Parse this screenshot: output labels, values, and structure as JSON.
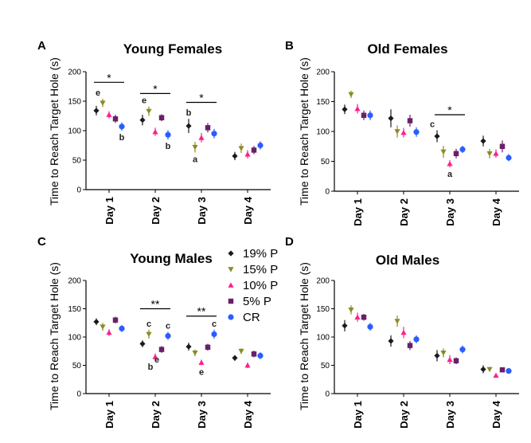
{
  "figure": {
    "legend": [
      {
        "label": "19% P",
        "color": "#1a1a1a",
        "marker": "diamond"
      },
      {
        "label": "15% P",
        "color": "#8b8b23",
        "marker": "triangle-down"
      },
      {
        "label": "10% P",
        "color": "#ff1f8f",
        "marker": "triangle-up"
      },
      {
        "label": "5% P",
        "color": "#6a1f6a",
        "marker": "square"
      },
      {
        "label": "CR",
        "color": "#2b5cff",
        "marker": "circle"
      }
    ]
  },
  "chart_data": [
    {
      "type": "scatter",
      "letter": "A",
      "title": "Young Females",
      "ylabel": "Time to Reach Target Hole (s)",
      "categories": [
        "Day 1",
        "Day 2",
        "Day 3",
        "Day 4"
      ],
      "ylim": [
        0,
        200
      ],
      "yticks": [
        0,
        50,
        100,
        150,
        200
      ],
      "series": [
        {
          "name": "19% P",
          "values": [
            134,
            118,
            108,
            57
          ],
          "errors": [
            8,
            9,
            12,
            7
          ]
        },
        {
          "name": "15% P",
          "values": [
            147,
            133,
            72,
            70
          ],
          "errors": [
            7,
            8,
            9,
            8
          ]
        },
        {
          "name": "10% P",
          "values": [
            127,
            98,
            88,
            60
          ],
          "errors": [
            6,
            7,
            8,
            7
          ]
        },
        {
          "name": "5% P",
          "values": [
            120,
            122,
            105,
            67
          ],
          "errors": [
            7,
            6,
            8,
            7
          ]
        },
        {
          "name": "CR",
          "values": [
            107,
            93,
            95,
            75
          ],
          "errors": [
            7,
            8,
            8,
            7
          ]
        }
      ],
      "brackets": [
        {
          "from": 0,
          "to": 4,
          "day": 0,
          "y": 182,
          "label": "*"
        },
        {
          "from": 0,
          "to": 4,
          "day": 1,
          "y": 163,
          "label": "*"
        },
        {
          "from": 0,
          "to": 4,
          "day": 2,
          "y": 148,
          "label": "*"
        }
      ],
      "letters": [
        {
          "day": 0,
          "series": 1,
          "text": "e",
          "pos": "above-left"
        },
        {
          "day": 0,
          "series": 4,
          "text": "b",
          "pos": "below"
        },
        {
          "day": 1,
          "series": 1,
          "text": "e",
          "pos": "above-left"
        },
        {
          "day": 1,
          "series": 4,
          "text": "b",
          "pos": "below"
        },
        {
          "day": 2,
          "series": 0,
          "text": "b",
          "pos": "above"
        },
        {
          "day": 2,
          "series": 1,
          "text": "a",
          "pos": "below"
        }
      ]
    },
    {
      "type": "scatter",
      "letter": "B",
      "title": "Old Females",
      "ylabel": "Time to Reach Target Hole (s)",
      "categories": [
        "Day 1",
        "Day 2",
        "Day 3",
        "Day 4"
      ],
      "ylim": [
        0,
        200
      ],
      "yticks": [
        0,
        50,
        100,
        150,
        200
      ],
      "series": [
        {
          "name": "19% P",
          "values": [
            137,
            122,
            92,
            84
          ],
          "errors": [
            8,
            15,
            10,
            9
          ]
        },
        {
          "name": "15% P",
          "values": [
            162,
            100,
            66,
            63
          ],
          "errors": [
            6,
            10,
            10,
            8
          ]
        },
        {
          "name": "10% P",
          "values": [
            138,
            98,
            46,
            63
          ],
          "errors": [
            8,
            8,
            6,
            7
          ]
        },
        {
          "name": "5% P",
          "values": [
            127,
            118,
            63,
            75
          ],
          "errors": [
            8,
            10,
            8,
            10
          ]
        },
        {
          "name": "CR",
          "values": [
            127,
            99,
            70,
            56
          ],
          "errors": [
            8,
            8,
            6,
            6
          ]
        }
      ],
      "brackets": [
        {
          "from": 0,
          "to": 4,
          "day": 2,
          "y": 128,
          "label": "*"
        }
      ],
      "letters": [
        {
          "day": 2,
          "series": 0,
          "text": "c",
          "pos": "above-left"
        },
        {
          "day": 2,
          "series": 2,
          "text": "a",
          "pos": "below"
        }
      ]
    },
    {
      "type": "scatter",
      "letter": "C",
      "title": "Young Males",
      "ylabel": "Time to Reach Target Hole (s)",
      "categories": [
        "Day 1",
        "Day 2",
        "Day 3",
        "Day 4"
      ],
      "ylim": [
        0,
        200
      ],
      "yticks": [
        0,
        50,
        100,
        150,
        200
      ],
      "series": [
        {
          "name": "19% P",
          "values": [
            127,
            88,
            83,
            63
          ],
          "errors": [
            6,
            6,
            7,
            5
          ]
        },
        {
          "name": "15% P",
          "values": [
            118,
            105,
            72,
            75
          ],
          "errors": [
            7,
            8,
            6,
            5
          ]
        },
        {
          "name": "10% P",
          "values": [
            108,
            65,
            55,
            50
          ],
          "errors": [
            6,
            6,
            5,
            5
          ]
        },
        {
          "name": "5% P",
          "values": [
            130,
            78,
            82,
            70
          ],
          "errors": [
            6,
            6,
            6,
            6
          ]
        },
        {
          "name": "CR",
          "values": [
            115,
            102,
            105,
            67
          ],
          "errors": [
            6,
            7,
            8,
            6
          ]
        }
      ],
      "brackets": [
        {
          "from": 0,
          "to": 4,
          "day": 1,
          "y": 150,
          "label": "**"
        },
        {
          "from": 0,
          "to": 4,
          "day": 2,
          "y": 137,
          "label": "**"
        }
      ],
      "letters": [
        {
          "day": 1,
          "series": 1,
          "text": "c",
          "pos": "above"
        },
        {
          "day": 1,
          "series": 4,
          "text": "c",
          "pos": "above"
        },
        {
          "day": 1,
          "series": 2,
          "text": "b",
          "pos": "below-left"
        },
        {
          "day": 1,
          "series": 3,
          "text": "e",
          "pos": "below-left"
        },
        {
          "day": 2,
          "series": 4,
          "text": "c",
          "pos": "above"
        },
        {
          "day": 2,
          "series": 2,
          "text": "e",
          "pos": "below"
        }
      ]
    },
    {
      "type": "scatter",
      "letter": "D",
      "title": "Old Males",
      "ylabel": "Time to Reach Target Hole (s)",
      "categories": [
        "Day 1",
        "Day 2",
        "Day 3",
        "Day 4"
      ],
      "ylim": [
        0,
        200
      ],
      "yticks": [
        0,
        50,
        100,
        150,
        200
      ],
      "series": [
        {
          "name": "19% P",
          "values": [
            120,
            93,
            67,
            43
          ],
          "errors": [
            10,
            10,
            10,
            7
          ]
        },
        {
          "name": "15% P",
          "values": [
            148,
            128,
            72,
            43
          ],
          "errors": [
            8,
            10,
            8,
            4
          ]
        },
        {
          "name": "10% P",
          "values": [
            135,
            108,
            60,
            32
          ],
          "errors": [
            8,
            10,
            8,
            4
          ]
        },
        {
          "name": "5% P",
          "values": [
            135,
            85,
            58,
            42
          ],
          "errors": [
            6,
            8,
            6,
            4
          ]
        },
        {
          "name": "CR",
          "values": [
            118,
            96,
            78,
            40
          ],
          "errors": [
            7,
            7,
            7,
            3
          ]
        }
      ],
      "brackets": [],
      "letters": []
    }
  ]
}
